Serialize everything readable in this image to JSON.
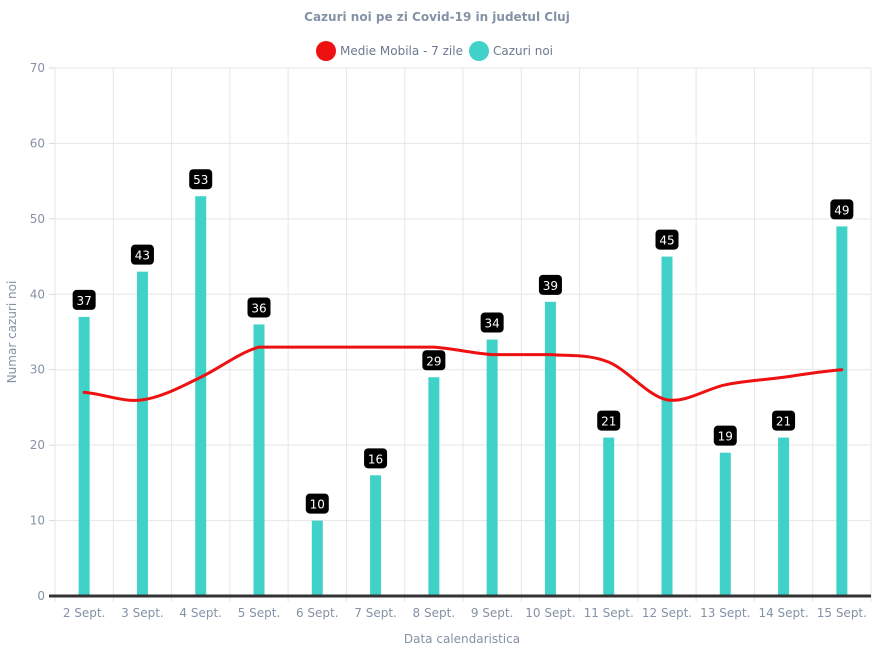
{
  "chart_data": {
    "type": "bar",
    "title": "Cazuri noi pe zi Covid-19 in judetul Cluj",
    "xlabel": "Data calendaristica",
    "ylabel": "Numar cazuri noi",
    "ylim": [
      0,
      70
    ],
    "yticks": [
      0,
      10,
      20,
      30,
      40,
      50,
      60,
      70
    ],
    "grid": true,
    "legend_position": "top",
    "categories": [
      "2 Sept.",
      "3 Sept.",
      "4 Sept.",
      "5 Sept.",
      "6 Sept.",
      "7 Sept.",
      "8 Sept.",
      "9 Sept.",
      "10 Sept.",
      "11 Sept.",
      "12 Sept.",
      "13 Sept.",
      "14 Sept.",
      "15 Sept."
    ],
    "series": [
      {
        "name": "Medie Mobila - 7 zile",
        "type": "line",
        "color": "#ee1111",
        "values": [
          27,
          26,
          29,
          33,
          33,
          33,
          33,
          32,
          32,
          31,
          26,
          28,
          29,
          30
        ]
      },
      {
        "name": "Cazuri noi",
        "type": "bar",
        "color": "#40d2c8",
        "values": [
          37,
          43,
          53,
          36,
          10,
          16,
          29,
          34,
          39,
          21,
          45,
          19,
          21,
          49
        ],
        "data_labels": [
          "37",
          "43",
          "53",
          "36",
          "10",
          "16",
          "29",
          "34",
          "39",
          "21",
          "45",
          "19",
          "21",
          "49"
        ]
      }
    ]
  }
}
